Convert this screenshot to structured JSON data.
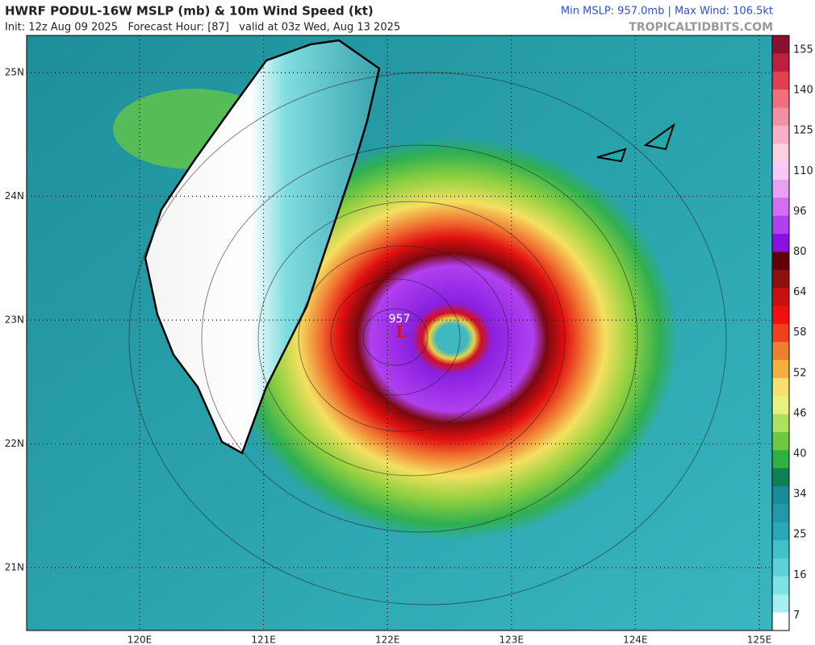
{
  "header": {
    "title": "HWRF PODUL-16W MSLP (mb) & 10m Wind Speed (kt)",
    "subtitle": "Init: 12z Aug 09 2025   Forecast Hour: [87]   valid at 03z Wed, Aug 13 2025",
    "stats": "Min MSLP: 957.0mb | Max Wind: 106.5kt",
    "source": "TROPICALTIDBITS.COM"
  },
  "map": {
    "lat_labels": [
      "25N",
      "24N",
      "23N",
      "22N",
      "21N"
    ],
    "lon_labels": [
      "120E",
      "121E",
      "122E",
      "123E",
      "124E",
      "125E"
    ],
    "low_label": "L",
    "low_pressure": "957"
  },
  "colorbar": {
    "labels": [
      "155",
      "140",
      "125",
      "110",
      "96",
      "80",
      "64",
      "58",
      "52",
      "46",
      "40",
      "34",
      "25",
      "16",
      "7"
    ]
  }
}
